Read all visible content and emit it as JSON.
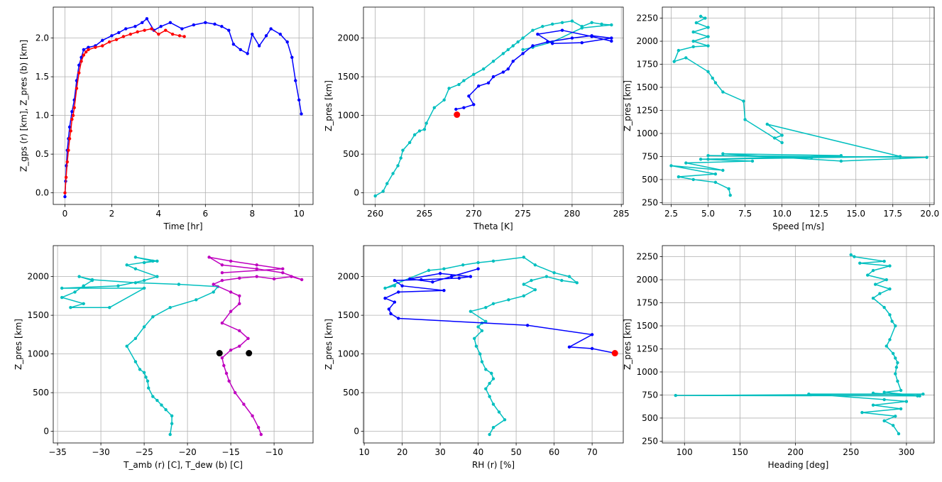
{
  "chart_data": [
    {
      "type": "line",
      "xlabel": "Time [hr]",
      "ylabel": "Z_gps (r) [km], Z_pres (b) [km]",
      "xlim": [
        -0.5,
        10.6
      ],
      "ylim": [
        -0.15,
        2.4
      ],
      "xticks": [
        0,
        2,
        4,
        6,
        8,
        10
      ],
      "yticks": [
        0.0,
        0.5,
        1.0,
        1.5,
        2.0
      ],
      "xtick_labels": [
        "0",
        "2",
        "4",
        "6",
        "8",
        "10"
      ],
      "ytick_labels": [
        "0.0",
        "0.5",
        "1.0",
        "1.5",
        "2.0"
      ],
      "grid": true,
      "series": [
        {
          "color": "#0000ff",
          "marker": true,
          "x": [
            0.0,
            0.03,
            0.06,
            0.1,
            0.15,
            0.2,
            0.3,
            0.4,
            0.5,
            0.6,
            0.7,
            0.8,
            1.0,
            1.3,
            1.6,
            2.0,
            2.3,
            2.6,
            3.0,
            3.3,
            3.5,
            3.8,
            4.1,
            4.5,
            5.0,
            5.5,
            6.0,
            6.4,
            6.7,
            7.0,
            7.2,
            7.5,
            7.8,
            8.0,
            8.3,
            8.6,
            8.8,
            9.2,
            9.5,
            9.7,
            9.85,
            10.0,
            10.1
          ],
          "y": [
            -0.05,
            0.15,
            0.35,
            0.55,
            0.7,
            0.85,
            1.05,
            1.2,
            1.45,
            1.65,
            1.75,
            1.85,
            1.88,
            1.9,
            1.97,
            2.03,
            2.07,
            2.12,
            2.15,
            2.2,
            2.25,
            2.1,
            2.15,
            2.2,
            2.12,
            2.17,
            2.2,
            2.18,
            2.15,
            2.1,
            1.92,
            1.85,
            1.8,
            2.05,
            1.9,
            2.03,
            2.12,
            2.05,
            1.95,
            1.75,
            1.45,
            1.2,
            1.02
          ]
        },
        {
          "color": "#ff0000",
          "marker": true,
          "x": [
            0.0,
            0.05,
            0.1,
            0.15,
            0.2,
            0.25,
            0.3,
            0.35,
            0.4,
            0.5,
            0.6,
            0.7,
            0.8,
            0.9,
            1.0,
            1.3,
            1.6,
            1.9,
            2.2,
            2.5,
            2.8,
            3.1,
            3.4,
            3.7,
            4.0,
            4.3,
            4.6,
            4.9,
            5.1
          ],
          "y": [
            0.0,
            0.2,
            0.4,
            0.55,
            0.7,
            0.8,
            0.95,
            1.0,
            1.1,
            1.35,
            1.55,
            1.7,
            1.78,
            1.82,
            1.85,
            1.88,
            1.9,
            1.95,
            1.98,
            2.02,
            2.05,
            2.08,
            2.1,
            2.12,
            2.05,
            2.1,
            2.05,
            2.03,
            2.02
          ]
        }
      ]
    },
    {
      "type": "line",
      "xlabel": "Theta [K]",
      "ylabel": "Z_pres [km]",
      "xlim": [
        258.8,
        285.2
      ],
      "ylim": [
        -150,
        2400
      ],
      "xticks": [
        260,
        265,
        270,
        275,
        280,
        285
      ],
      "yticks": [
        0,
        500,
        1000,
        1500,
        2000
      ],
      "xtick_labels": [
        "260",
        "265",
        "270",
        "275",
        "280",
        "285"
      ],
      "ytick_labels": [
        "0",
        "500",
        "1000",
        "1500",
        "2000"
      ],
      "grid": true,
      "series": [
        {
          "color": "#00bfbf",
          "marker": true,
          "x": [
            260.0,
            260.8,
            261.2,
            261.8,
            262.3,
            262.6,
            262.8,
            263.5,
            264.0,
            264.5,
            265.0,
            265.2,
            266.0,
            267.0,
            267.5,
            268.5,
            269.0,
            270.0,
            271.0,
            272.0,
            273.0,
            273.5,
            274.0,
            274.5,
            275.0,
            276.0,
            277.0,
            278.0,
            279.0,
            280.0,
            281.0,
            282.0,
            283.0,
            284.0,
            281.0,
            278.0,
            276.0,
            275.0
          ],
          "y": [
            -40,
            20,
            120,
            250,
            350,
            450,
            550,
            650,
            750,
            800,
            820,
            900,
            1100,
            1200,
            1350,
            1400,
            1450,
            1530,
            1600,
            1700,
            1800,
            1850,
            1900,
            1950,
            2000,
            2100,
            2150,
            2180,
            2200,
            2220,
            2150,
            2200,
            2180,
            2170,
            2130,
            1950,
            1880,
            1850
          ]
        },
        {
          "color": "#0000ff",
          "marker": true,
          "x": [
            268.2,
            269.0,
            270.0,
            269.5,
            270.5,
            271.5,
            272.0,
            273.0,
            273.5,
            274.0,
            275.0,
            276.0,
            277.5,
            280.0,
            282.0,
            284.0,
            281.0,
            278.0,
            276.5,
            279.0,
            282.0,
            284.0
          ],
          "y": [
            1080,
            1100,
            1140,
            1250,
            1380,
            1420,
            1500,
            1560,
            1600,
            1700,
            1800,
            1900,
            1950,
            2000,
            2030,
            2000,
            1940,
            1930,
            2050,
            2100,
            2020,
            1960
          ]
        },
        {
          "color": "#ff0000",
          "marker": false,
          "x": [
            268.3
          ],
          "y": [
            1010
          ]
        }
      ]
    },
    {
      "type": "line",
      "xlabel": "Speed [m/s]",
      "ylabel": "Z_pres [km]",
      "xlim": [
        1.9,
        20.3
      ],
      "ylim": [
        230,
        2370
      ],
      "xticks": [
        2.5,
        5.0,
        7.5,
        10.0,
        12.5,
        15.0,
        17.5,
        20.0
      ],
      "yticks": [
        250,
        500,
        750,
        1000,
        1250,
        1500,
        1750,
        2000,
        2250
      ],
      "xtick_labels": [
        "2.5",
        "5.0",
        "7.5",
        "10.0",
        "12.5",
        "15.0",
        "17.5",
        "20.0"
      ],
      "ytick_labels": [
        "250",
        "500",
        "750",
        "1000",
        "1250",
        "1500",
        "1750",
        "2000",
        "2250"
      ],
      "grid": true,
      "series": [
        {
          "color": "#00bfbf",
          "marker": true,
          "x": [
            6.5,
            6.4,
            5.5,
            4.0,
            3.0,
            5.5,
            2.5,
            6.0,
            3.5,
            8.0,
            4.5,
            12.0,
            5.0,
            19.8,
            14.0,
            6.0,
            14.0,
            5.0,
            18.0,
            9.0,
            10.0,
            9.5,
            10.0,
            7.5,
            7.4,
            6.0,
            5.5,
            5.3,
            5.0,
            3.5,
            2.7,
            3.0,
            4.0,
            5.0,
            4.0,
            5.0,
            4.0,
            5.0,
            4.2,
            4.8,
            4.5
          ],
          "y": [
            330,
            400,
            470,
            500,
            530,
            560,
            650,
            600,
            680,
            700,
            720,
            740,
            760,
            740,
            700,
            780,
            760,
            720,
            750,
            1100,
            980,
            950,
            900,
            1150,
            1350,
            1450,
            1550,
            1600,
            1670,
            1820,
            1780,
            1900,
            1940,
            1950,
            2000,
            2050,
            2100,
            2150,
            2200,
            2250,
            2270
          ]
        }
      ]
    },
    {
      "type": "line",
      "xlabel": "T_amb (r) [C], T_dew (b) [C]",
      "ylabel": "Z_pres [km]",
      "xlim": [
        -35.5,
        -5.5
      ],
      "ylim": [
        -150,
        2400
      ],
      "xticks": [
        -35,
        -30,
        -25,
        -20,
        -15,
        -10
      ],
      "yticks": [
        0,
        500,
        1000,
        1500,
        2000
      ],
      "xtick_labels": [
        "−35",
        "−30",
        "−25",
        "−20",
        "−15",
        "−10"
      ],
      "ytick_labels": [
        "0",
        "500",
        "1000",
        "1500",
        "2000"
      ],
      "grid": true,
      "series": [
        {
          "color": "#00bfbf",
          "marker": true,
          "x": [
            -22.0,
            -21.8,
            -21.8,
            -22.5,
            -23.0,
            -23.5,
            -24.0,
            -24.5,
            -24.6,
            -24.8,
            -25.0,
            -25.5,
            -26.0,
            -27.0,
            -26.0,
            -25.0,
            -24.0,
            -22.0,
            -19.0,
            -17.0,
            -16.5,
            -21.0,
            -26.0,
            -31.0,
            -32.5,
            -31.0,
            -32.0,
            -33.0,
            -34.5,
            -32.0,
            -33.5,
            -29.0,
            -25.0,
            -34.5,
            -28.0,
            -25.0,
            -23.5,
            -26.0,
            -27.0,
            -24.0,
            -26.0,
            -23.5,
            -25.0
          ],
          "y": [
            -40,
            100,
            200,
            280,
            340,
            400,
            450,
            560,
            650,
            700,
            760,
            800,
            900,
            1100,
            1200,
            1350,
            1480,
            1600,
            1700,
            1800,
            1870,
            1900,
            1920,
            1960,
            2000,
            1950,
            1880,
            1800,
            1730,
            1650,
            1600,
            1600,
            1850,
            1850,
            1880,
            1950,
            2000,
            2100,
            2150,
            2200,
            2250,
            2200,
            2180
          ]
        },
        {
          "color": "#bf00bf",
          "marker": true,
          "x": [
            -11.5,
            -11.8,
            -12.5,
            -13.5,
            -14.5,
            -15.2,
            -15.5,
            -15.8,
            -16.0,
            -15.0,
            -14.0,
            -13.0,
            -14.0,
            -16.0,
            -15.0,
            -14.0,
            -14.0,
            -15.0,
            -17.0,
            -16.0,
            -14.0,
            -12.0,
            -10.0,
            -8.0,
            -6.8,
            -9.0,
            -12.0,
            -16.0,
            -17.5,
            -15.0,
            -12.0,
            -9.0,
            -16.0
          ],
          "y": [
            -40,
            50,
            200,
            350,
            500,
            650,
            750,
            850,
            950,
            1050,
            1100,
            1200,
            1300,
            1400,
            1550,
            1650,
            1750,
            1800,
            1900,
            1950,
            1980,
            2000,
            1970,
            2000,
            1960,
            2050,
            2100,
            2150,
            2250,
            2200,
            2150,
            2100,
            2050
          ]
        },
        {
          "color": "#000000",
          "marker": false,
          "x": [
            -16.3,
            -12.9
          ],
          "y": [
            1010,
            1010
          ]
        }
      ]
    },
    {
      "type": "line",
      "xlabel": "RH (r) [%]",
      "ylabel": "Z_pres [km]",
      "xlim": [
        9.8,
        78.2
      ],
      "ylim": [
        -150,
        2400
      ],
      "xticks": [
        10,
        20,
        30,
        40,
        50,
        60,
        70
      ],
      "yticks": [
        0,
        500,
        1000,
        1500,
        2000
      ],
      "xtick_labels": [
        "10",
        "20",
        "30",
        "40",
        "50",
        "60",
        "70"
      ],
      "ytick_labels": [
        "0",
        "500",
        "1000",
        "1500",
        "2000"
      ],
      "grid": true,
      "series": [
        {
          "color": "#00bfbf",
          "marker": true,
          "x": [
            43.0,
            44.0,
            47.0,
            45.5,
            44.0,
            43.0,
            42.0,
            43.0,
            44.0,
            43.5,
            42.0,
            41.0,
            40.5,
            39.5,
            39.0,
            41.0,
            40.0,
            41.0,
            42.0,
            38.0,
            42.0,
            44.0,
            48.0,
            52.0,
            55.0,
            52.0,
            54.0,
            58.0,
            62.0,
            66.0,
            64.0,
            60.0,
            55.0,
            52.0,
            44.0,
            40.0,
            36.0,
            31.0,
            27.0,
            15.5,
            18.0
          ],
          "y": [
            -40,
            50,
            150,
            250,
            350,
            450,
            550,
            620,
            680,
            750,
            800,
            900,
            1000,
            1100,
            1200,
            1300,
            1350,
            1400,
            1420,
            1550,
            1600,
            1650,
            1700,
            1750,
            1830,
            1900,
            1950,
            2000,
            1950,
            1920,
            2000,
            2050,
            2150,
            2250,
            2200,
            2180,
            2150,
            2100,
            2080,
            1850,
            1880
          ]
        },
        {
          "color": "#0000ff",
          "marker": true,
          "x": [
            76.0,
            70.0,
            64.0,
            70.0,
            53.0,
            19.0,
            17.0,
            16.5,
            18.0,
            15.5,
            19.0,
            31.0,
            20.0,
            18.0,
            25.0,
            35.0,
            38.0,
            30.0,
            22.0,
            28.0,
            40.0,
            33.0
          ],
          "y": [
            1010,
            1070,
            1090,
            1250,
            1370,
            1460,
            1520,
            1580,
            1670,
            1720,
            1800,
            1820,
            1880,
            1950,
            1960,
            1980,
            2000,
            2040,
            1970,
            1930,
            2100,
            2000
          ]
        },
        {
          "color": "#ff0000",
          "marker": false,
          "x": [
            76.0
          ],
          "y": [
            1010
          ]
        }
      ]
    },
    {
      "type": "line",
      "xlabel": "Heading [deg]",
      "ylabel": "Z_pres [km]",
      "xlim": [
        80,
        325
      ],
      "ylim": [
        230,
        2370
      ],
      "xticks": [
        100,
        150,
        200,
        250,
        300
      ],
      "yticks": [
        250,
        500,
        750,
        1000,
        1250,
        1500,
        1750,
        2000,
        2250
      ],
      "xtick_labels": [
        "100",
        "150",
        "200",
        "250",
        "300"
      ],
      "ytick_labels": [
        "250",
        "500",
        "750",
        "1000",
        "1250",
        "1500",
        "1750",
        "2000",
        "2250"
      ],
      "grid": true,
      "series": [
        {
          "color": "#00bfbf",
          "marker": true,
          "x": [
            293,
            288,
            280,
            290,
            260,
            295,
            270,
            300,
            280,
            212,
            315,
            92,
            310,
            270,
            312,
            280,
            295,
            292,
            290,
            291,
            292,
            290,
            288,
            282,
            285,
            290,
            287,
            285,
            280,
            270,
            276,
            285,
            272,
            282,
            265,
            270,
            285,
            258,
            280,
            253,
            250
          ],
          "y": [
            330,
            420,
            470,
            520,
            560,
            600,
            640,
            680,
            700,
            760,
            760,
            745,
            740,
            770,
            740,
            780,
            800,
            900,
            980,
            1050,
            1100,
            1150,
            1200,
            1280,
            1350,
            1500,
            1550,
            1620,
            1700,
            1800,
            1850,
            1900,
            1950,
            2000,
            2050,
            2100,
            2150,
            2180,
            2200,
            2250,
            2270
          ]
        }
      ]
    }
  ]
}
